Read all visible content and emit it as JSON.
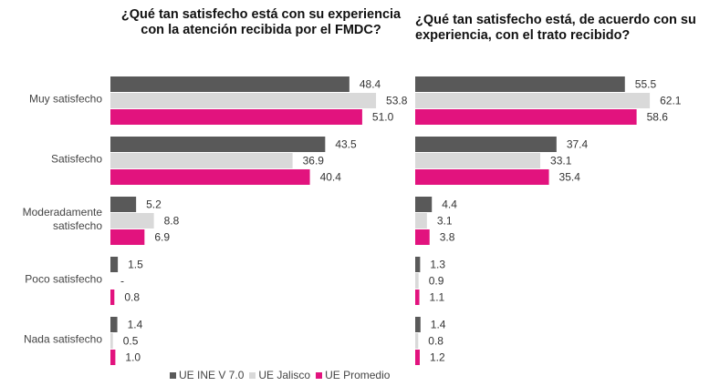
{
  "chart_data": [
    {
      "type": "bar",
      "orientation": "horizontal",
      "title": "¿Qué tan satisfecho  está con su experiencia con la atención recibida por el FMDC?",
      "categories": [
        "Muy satisfecho",
        "Satisfecho",
        "Moderadamente satisfecho",
        "Poco satisfecho",
        "Nada satisfecho"
      ],
      "series": [
        {
          "name": "UE INE  V 7.0",
          "color": "#595959",
          "values": [
            48.4,
            43.5,
            5.2,
            1.5,
            1.4
          ]
        },
        {
          "name": "UE Jalisco",
          "color": "#d9d9d9",
          "values": [
            53.8,
            36.9,
            8.8,
            null,
            0.5
          ],
          "value_labels": [
            "53.8",
            "36.9",
            "8.8",
            "-",
            "0.5"
          ]
        },
        {
          "name": "UE Promedio",
          "color": "#e2137e",
          "values": [
            51,
            40.4,
            6.9,
            0.8,
            1
          ],
          "value_labels": [
            "51.0",
            "40.4",
            "6.9",
            "0.8",
            "1.0"
          ]
        }
      ]
    },
    {
      "type": "bar",
      "orientation": "horizontal",
      "title": "¿Qué tan satisfecho  está, de acuerdo con su experiencia, con el trato recibido?",
      "series": [
        {
          "name": "UE INE  V 7.0",
          "color": "#595959",
          "values": [
            55.5,
            37.4,
            4.4,
            1.3,
            1.4
          ]
        },
        {
          "name": "UE Jalisco",
          "color": "#d9d9d9",
          "values": [
            62.1,
            33.1,
            3.1,
            0.9,
            0.8
          ]
        },
        {
          "name": "UE Promedio",
          "color": "#e2137e",
          "values": [
            58.6,
            35.4,
            3.8,
            1.1,
            1.2
          ]
        }
      ]
    }
  ]
}
